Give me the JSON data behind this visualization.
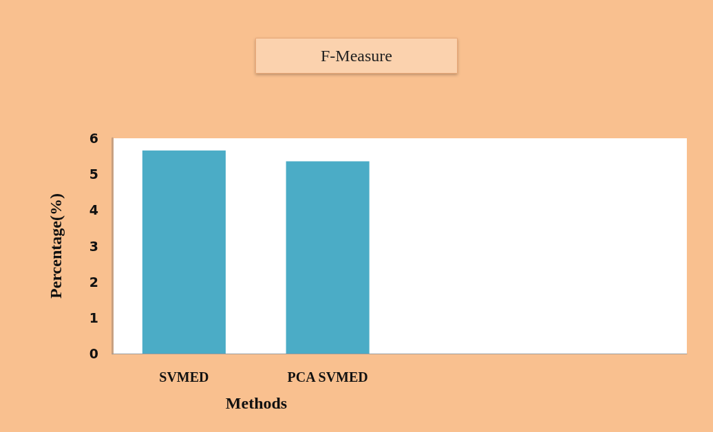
{
  "chart_data": {
    "type": "bar",
    "title": "F-Measure",
    "xlabel": "Methods",
    "ylabel": "Percentage(%)",
    "categories": [
      "SVMED",
      "PCA SVMED",
      null,
      null
    ],
    "values": [
      5.66,
      5.36,
      null,
      null
    ],
    "color": "#4bacc6",
    "ylim": [
      0,
      6
    ],
    "yticks": [
      0,
      1,
      2,
      3,
      4,
      5,
      6
    ],
    "grid": false
  }
}
